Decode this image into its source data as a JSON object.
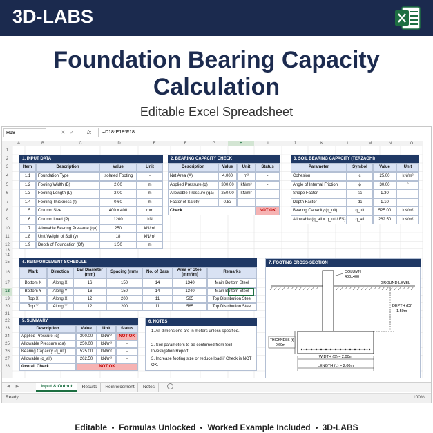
{
  "header": {
    "brand": "3D-LABS"
  },
  "title": "Foundation Bearing Capacity Calculation",
  "subtitle": "Editable Excel Spreadsheet",
  "formula_bar": {
    "cell": "H18",
    "fx": "fx",
    "formula": "=D18*E18*F18"
  },
  "sheet": {
    "column_letters": [
      "A",
      "B",
      "C",
      "D",
      "E",
      "F",
      "G",
      "H",
      "I",
      "J",
      "K",
      "L",
      "M",
      "N",
      "O"
    ],
    "row_numbers": [
      1,
      2,
      3,
      4,
      5,
      6,
      7,
      8,
      9,
      10,
      11,
      12,
      13,
      14,
      15,
      16,
      17,
      18,
      19,
      20,
      21,
      22,
      23,
      24,
      25,
      26,
      27,
      28
    ],
    "alert_fill": "#f6b3b3",
    "alert_text": "#c00000"
  },
  "input": {
    "title": "1. INPUT DATA",
    "headers": [
      "Item",
      "Description",
      "Value",
      "Unit"
    ],
    "rows": [
      [
        "1.1",
        "Foundation Type",
        "Isolated Footing",
        "-"
      ],
      [
        "1.2",
        "Footing Width (B)",
        "2.00",
        "m"
      ],
      [
        "1.3",
        "Footing Length (L)",
        "2.00",
        "m"
      ],
      [
        "1.4",
        "Footing Thickness (t)",
        "0.60",
        "m"
      ],
      [
        "1.5",
        "Column Size",
        "400 x 400",
        "mm"
      ],
      [
        "1.6",
        "Column Load (P)",
        "1200",
        "kN"
      ],
      [
        "1.7",
        "Allowable Bearing Pressure (qa)",
        "250",
        "kN/m²"
      ],
      [
        "1.8",
        "Unit Weight of Soil (γ)",
        "18",
        "kN/m³"
      ],
      [
        "1.9",
        "Depth of Foundation (Df)",
        "1.50",
        "m"
      ]
    ]
  },
  "bearing": {
    "title": "2. BEARING CAPACITY CHECK",
    "headers": [
      "Description",
      "Value",
      "Unit",
      "Status"
    ],
    "rows": [
      [
        "Net Area (A)",
        "4.000",
        "m²",
        "-"
      ],
      [
        "Applied Pressure (q)",
        "300.00",
        "kN/m²",
        "-"
      ],
      [
        "Allowable Pressure (qa)",
        "250.00",
        "kN/m²",
        "-"
      ],
      [
        "Factor of Safety",
        "0.83",
        "-",
        "-"
      ]
    ],
    "check": {
      "label": "Check",
      "status": "NOT OK"
    }
  },
  "soil": {
    "title": "3. SOIL BEARING CAPACITY (TERZAGHI)",
    "headers": [
      "Parameter",
      "Symbol",
      "Value",
      "Unit"
    ],
    "rows": [
      [
        "Cohesion",
        "c",
        "25.00",
        "kN/m²"
      ],
      [
        "Angle of Internal Friction",
        "ϕ",
        "30.00",
        "°"
      ],
      [
        "Shape Factor",
        "sc",
        "1.30",
        "-"
      ],
      [
        "Depth Factor",
        "dc",
        "1.10",
        "-"
      ],
      [
        "Bearing Capacity (q_ult)",
        "q_ult",
        "525.00",
        "kN/m²"
      ],
      [
        "Allowable (q_all = q_ult / FS)",
        "q_all",
        "262.50",
        "kN/m²"
      ]
    ]
  },
  "reinforcement": {
    "title": "4. REINFORCEMENT SCHEDULE",
    "headers": [
      "Mark",
      "Direction",
      "Bar Diameter (mm)",
      "Spacing (mm)",
      "No. of Bars",
      "Area of Steel (mm²/m)",
      "Remarks"
    ],
    "rows": [
      [
        "Bottom X",
        "Along X",
        "16",
        "150",
        "14",
        "1340",
        "Main Bottom Steel"
      ],
      [
        "Bottom Y",
        "Along Y",
        "16",
        "150",
        "14",
        "1340",
        "Main Bottom Steel"
      ],
      [
        "Top X",
        "Along X",
        "12",
        "200",
        "11",
        "565",
        "Top Distribution Steel"
      ],
      [
        "Top Y",
        "Along Y",
        "12",
        "200",
        "11",
        "565",
        "Top Distribution Steel"
      ]
    ]
  },
  "summary": {
    "title": "5. SUMMARY",
    "headers": [
      "Description",
      "Value",
      "Unit",
      "Status"
    ],
    "rows": [
      [
        "Applied Pressure (q)",
        "300.00",
        "kN/m²",
        "NOT OK"
      ],
      [
        "Allowable Pressure (qa)",
        "250.00",
        "kN/m²",
        "-"
      ],
      [
        "Bearing Capacity (q_ult)",
        "525.00",
        "kN/m²",
        "-"
      ],
      [
        "Allowable (q_all)",
        "262.50",
        "kN/m²",
        "-"
      ]
    ],
    "overall": {
      "label": "Overall Check",
      "status": "NOT OK"
    }
  },
  "notes": {
    "title": "6. NOTES",
    "items": [
      "1. All dimensions are in meters unless specified.",
      "2. Soil parameters to be confirmed from Soil Investigation Report.",
      "3. Increase footing size or reduce load if Check is NOT OK."
    ]
  },
  "cross_section": {
    "title": "7. FOOTING CROSS-SECTION",
    "column_label": "COLUMN",
    "column_size": "400x400",
    "ground_level": "GROUND LEVEL",
    "depth_label": "DEPTH (Df)",
    "depth_value": "1.50m",
    "thickness_label": "THICKNESS (t)",
    "thickness_value": "0.60m",
    "width": "WIDTH (B) = 2.00m",
    "length": "LENGTH (L) = 2.00m"
  },
  "tabs": [
    "Input & Output",
    "Results",
    "Reinforcement",
    "Notes"
  ],
  "status_bar": {
    "status": "Ready",
    "zoom": "100%"
  },
  "footer": {
    "items": [
      "Editable",
      "Formulas Unlocked",
      "Worked Example Included",
      "3D-LABS"
    ]
  }
}
